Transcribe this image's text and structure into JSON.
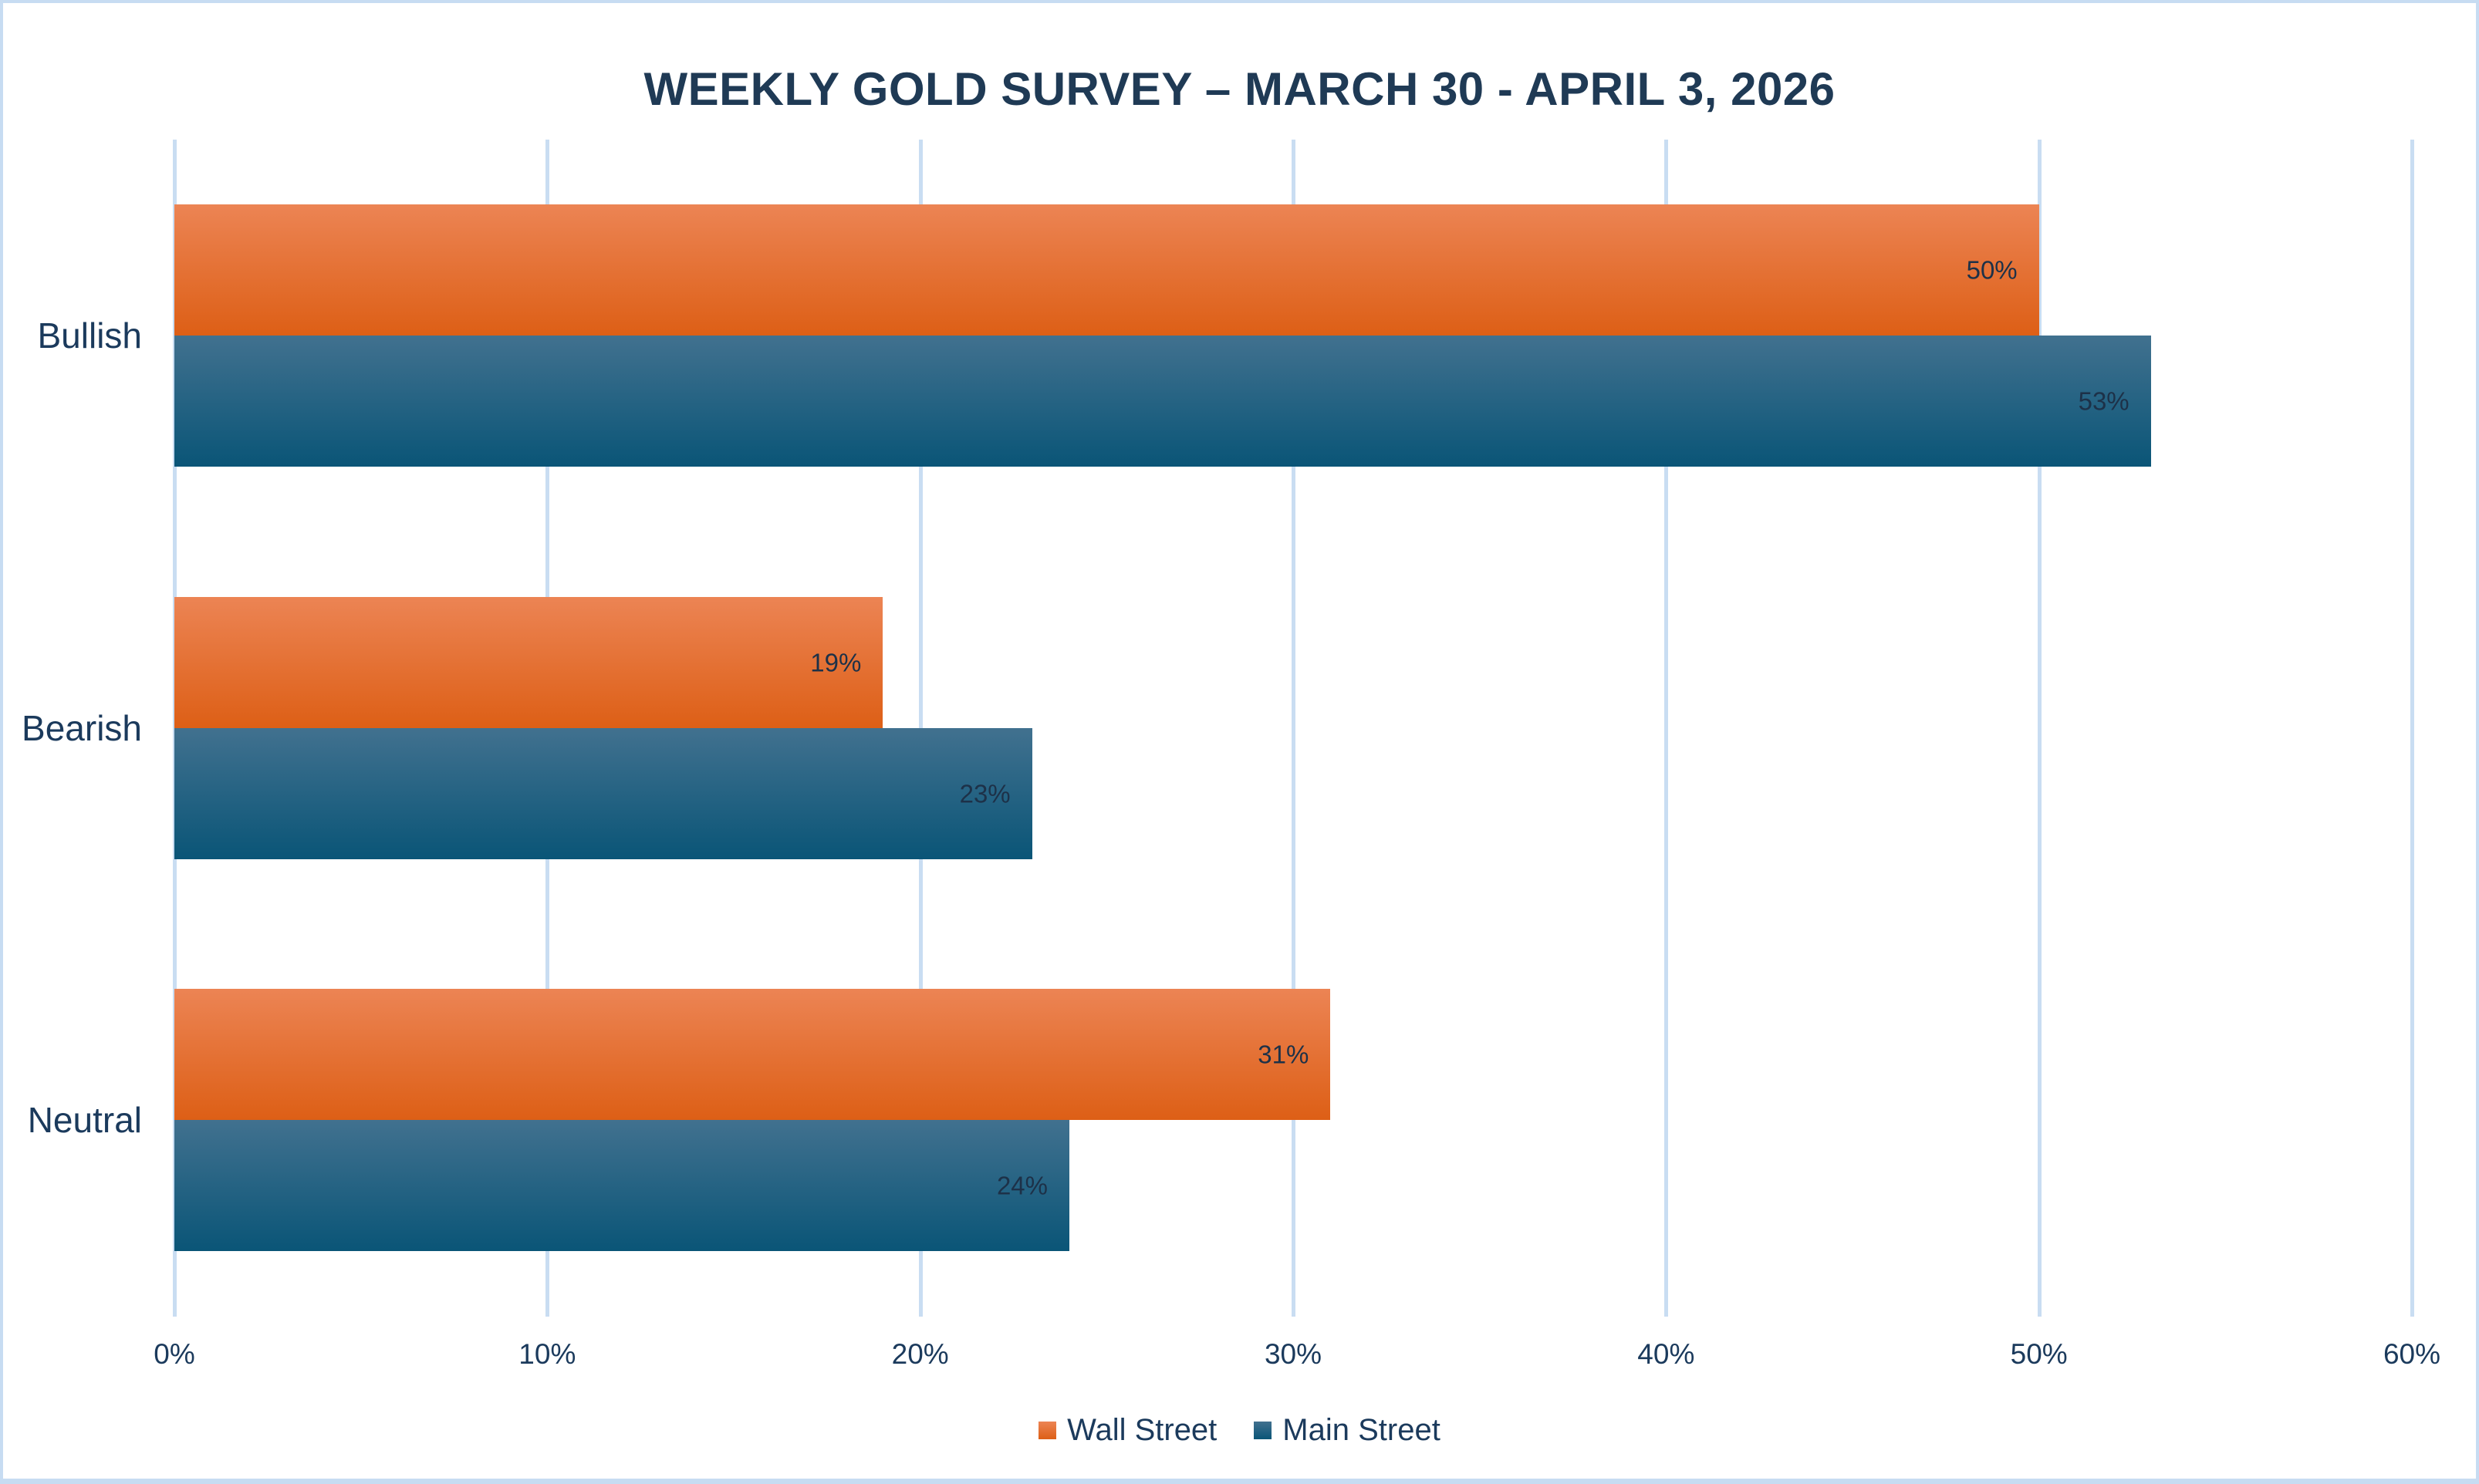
{
  "chart_data": {
    "type": "bar",
    "orientation": "horizontal",
    "title": "WEEKLY GOLD SURVEY – MARCH 30 - APRIL 3, 2026",
    "categories": [
      "Bullish",
      "Bearish",
      "Neutral"
    ],
    "series": [
      {
        "name": "Wall Street",
        "values": [
          50,
          19,
          31
        ]
      },
      {
        "name": "Main Street",
        "values": [
          53,
          23,
          24
        ]
      }
    ],
    "data_label_format": "{value}%",
    "x_axis": {
      "min": 0,
      "max": 60,
      "step": 10,
      "tick_labels": [
        "0%",
        "10%",
        "20%",
        "30%",
        "40%",
        "50%",
        "60%"
      ]
    },
    "grid": "vertical-on",
    "legend_position": "bottom-center"
  },
  "colors": {
    "background": "#ffffff",
    "canvas_border": "#c7dcf2",
    "gridline": "#c9ddf2",
    "title_text": "#1f3a55",
    "axis_text": "#1b3a5c",
    "data_label_text": "#1d3148",
    "wall_street_gradient_top": "#ec8454",
    "wall_street_gradient_bottom": "#dd5f16",
    "main_street_gradient_top": "#41718f",
    "main_street_gradient_bottom": "#0a5577"
  }
}
